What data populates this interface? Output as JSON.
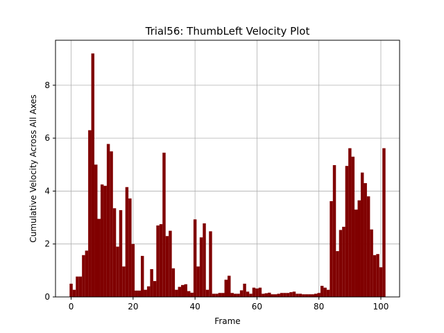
{
  "chart_data": {
    "type": "bar",
    "title": "Trial56: ThumbLeft Velocity Plot",
    "xlabel": "Frame",
    "ylabel": "Cumulative Velocity Across All Axes",
    "xlim": [
      -5.05,
      106.05
    ],
    "ylim": [
      0,
      9.7
    ],
    "xticks": [
      0,
      20,
      40,
      60,
      80,
      100
    ],
    "yticks": [
      0,
      2,
      4,
      6,
      8
    ],
    "grid": true,
    "bar_color": "#800000",
    "bar_width": 1,
    "x": [
      0,
      1,
      2,
      3,
      4,
      5,
      6,
      7,
      8,
      9,
      10,
      11,
      12,
      13,
      14,
      15,
      16,
      17,
      18,
      19,
      20,
      21,
      22,
      23,
      24,
      25,
      26,
      27,
      28,
      29,
      30,
      31,
      32,
      33,
      34,
      35,
      36,
      37,
      38,
      39,
      40,
      41,
      42,
      43,
      44,
      45,
      46,
      47,
      48,
      49,
      50,
      51,
      52,
      53,
      54,
      55,
      56,
      57,
      58,
      59,
      60,
      61,
      62,
      63,
      64,
      65,
      66,
      67,
      68,
      69,
      70,
      71,
      72,
      73,
      74,
      75,
      76,
      77,
      78,
      79,
      80,
      81,
      82,
      83,
      84,
      85,
      86,
      87,
      88,
      89,
      90,
      91,
      92,
      93,
      94,
      95,
      96,
      97,
      98,
      99,
      100,
      101
    ],
    "values": [
      0.5,
      0.27,
      0.77,
      0.77,
      1.58,
      1.75,
      6.3,
      9.2,
      5.0,
      2.95,
      4.25,
      4.2,
      5.78,
      5.5,
      3.35,
      1.9,
      3.28,
      1.15,
      4.15,
      3.72,
      2.0,
      0.24,
      0.24,
      1.55,
      0.27,
      0.4,
      1.05,
      0.6,
      2.7,
      2.75,
      5.45,
      2.3,
      2.5,
      1.08,
      0.27,
      0.38,
      0.45,
      0.48,
      0.22,
      0.16,
      2.93,
      1.15,
      2.25,
      2.78,
      0.27,
      2.48,
      0.12,
      0.12,
      0.15,
      0.15,
      0.65,
      0.8,
      0.15,
      0.12,
      0.12,
      0.25,
      0.5,
      0.2,
      0.12,
      0.35,
      0.32,
      0.35,
      0.12,
      0.14,
      0.16,
      0.1,
      0.1,
      0.12,
      0.15,
      0.15,
      0.15,
      0.18,
      0.2,
      0.12,
      0.12,
      0.1,
      0.1,
      0.1,
      0.1,
      0.12,
      0.15,
      0.42,
      0.35,
      0.27,
      3.62,
      4.98,
      1.73,
      2.53,
      2.65,
      4.95,
      5.62,
      5.3,
      3.3,
      3.65,
      4.7,
      4.3,
      3.8,
      2.55,
      1.58,
      1.62,
      1.12,
      5.62
    ]
  }
}
